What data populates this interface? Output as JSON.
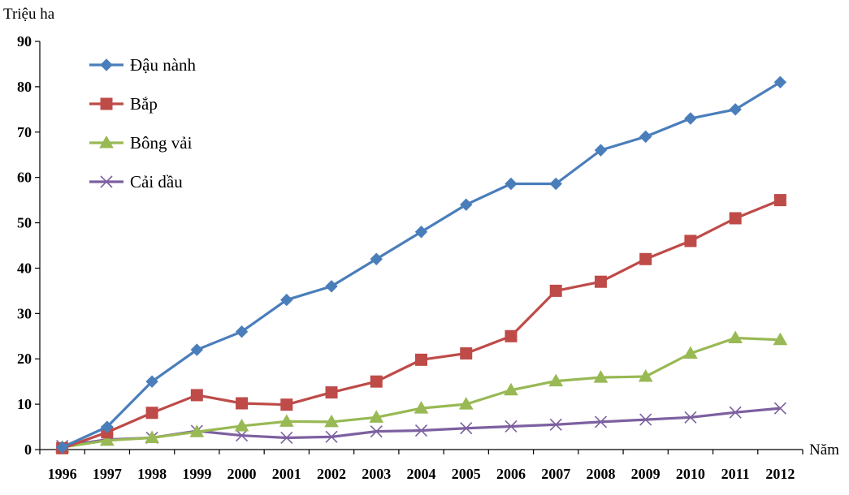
{
  "chart_data": {
    "type": "line",
    "ylabel": "Triệu ha",
    "xlabel": "Năm",
    "ylim": [
      0,
      90
    ],
    "yticks": [
      0,
      10,
      20,
      30,
      40,
      50,
      60,
      70,
      80,
      90
    ],
    "grid": false,
    "legend_position": "top-left",
    "categories": [
      "1996",
      "1997",
      "1998",
      "1999",
      "2000",
      "2001",
      "2002",
      "2003",
      "2004",
      "2005",
      "2006",
      "2007",
      "2008",
      "2009",
      "2010",
      "2011",
      "2012"
    ],
    "series": [
      {
        "name": "Đậu nành",
        "color": "#4A7EBB",
        "marker": "diamond",
        "values": [
          0.5,
          5,
          15,
          22,
          26,
          33,
          36,
          42,
          48,
          54,
          58.6,
          58.6,
          66,
          69,
          73,
          75,
          81
        ]
      },
      {
        "name": "Bắp",
        "color": "#BE4B48",
        "marker": "square",
        "values": [
          0.3,
          3.8,
          8.1,
          12,
          10.2,
          9.9,
          12.6,
          15,
          19.8,
          21.2,
          25,
          35,
          37,
          42,
          46,
          51,
          55
        ]
      },
      {
        "name": "Bông vải",
        "color": "#98B954",
        "marker": "triangle",
        "values": [
          0.5,
          2,
          2.6,
          3.9,
          5.2,
          6.2,
          6.1,
          7.1,
          9.1,
          10,
          13.1,
          15.1,
          15.9,
          16.1,
          21.2,
          24.6,
          24.2
        ]
      },
      {
        "name": "Cải dầu",
        "color": "#7D60A0",
        "marker": "x",
        "values": [
          0.8,
          2.2,
          2.6,
          4.1,
          3.1,
          2.6,
          2.8,
          4,
          4.2,
          4.7,
          5.1,
          5.5,
          6.1,
          6.6,
          7.1,
          8.2,
          9.1
        ]
      }
    ]
  }
}
